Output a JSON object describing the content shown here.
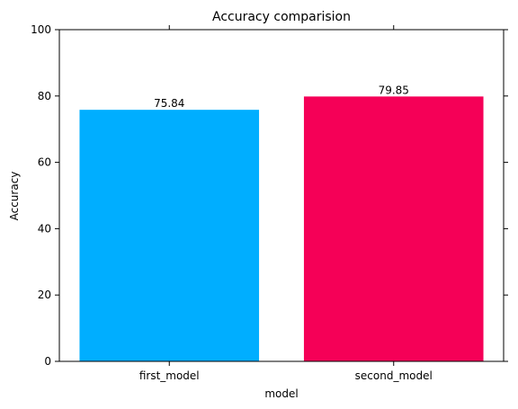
{
  "chart_data": {
    "type": "bar",
    "title": "Accuracy comparision",
    "xlabel": "model",
    "ylabel": "Accuracy",
    "categories": [
      "first_model",
      "second_model"
    ],
    "values": [
      75.84,
      79.85
    ],
    "data_labels": [
      "75.84",
      "79.85"
    ],
    "colors": [
      "#00aeff",
      "#f50057"
    ],
    "ylim": [
      0,
      100
    ],
    "yticks": [
      0,
      20,
      40,
      60,
      80,
      100
    ],
    "grid": false,
    "ticks_on_right": true,
    "ticks_on_top": true
  }
}
